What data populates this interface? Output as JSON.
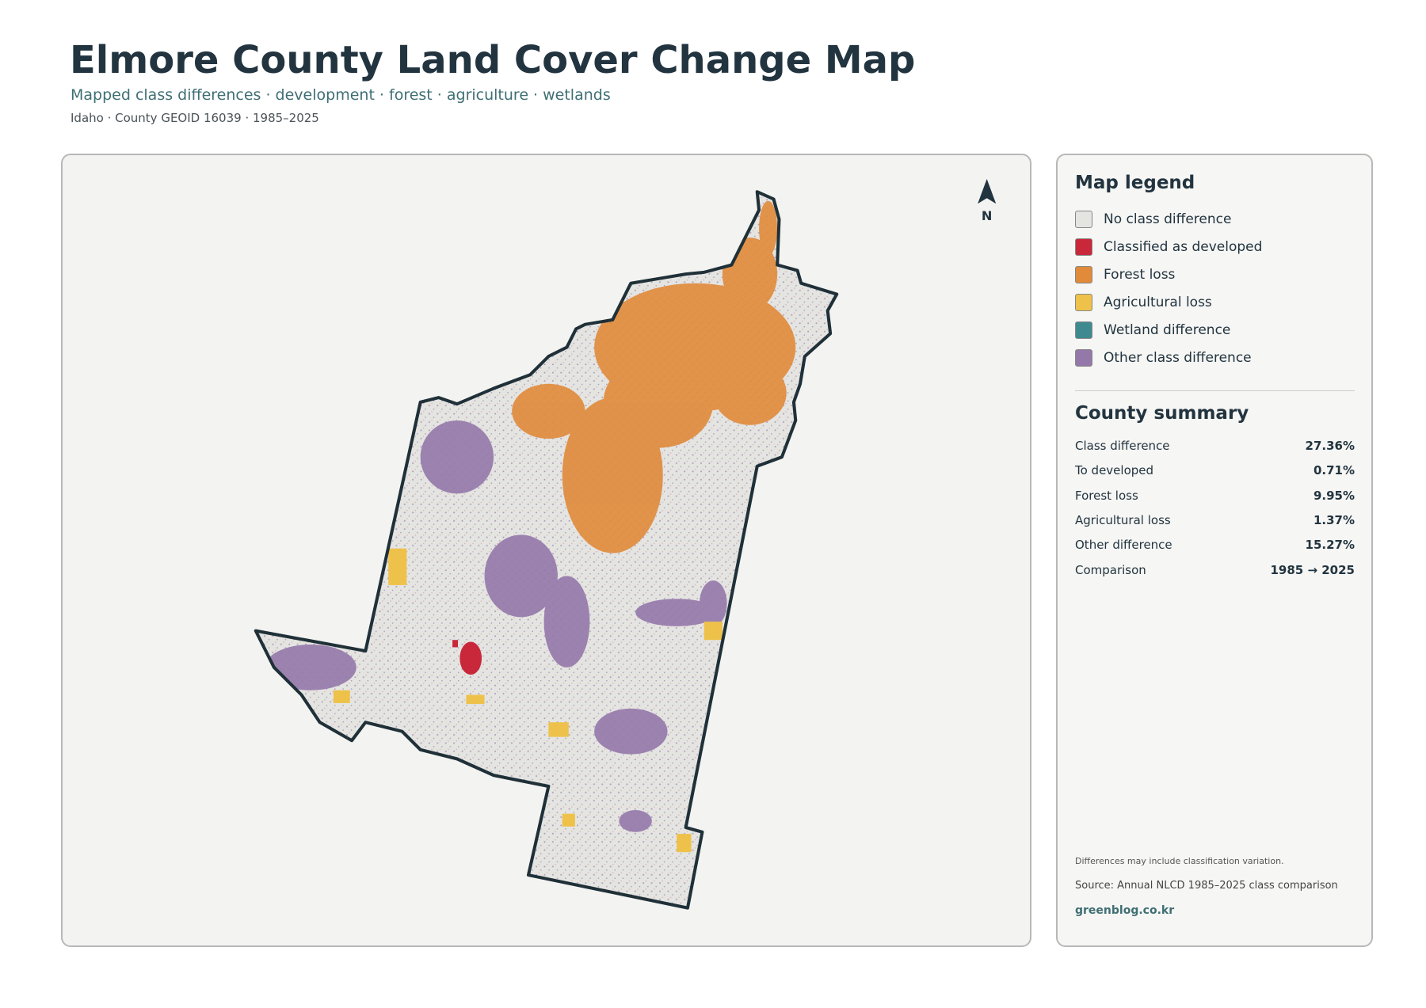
{
  "header": {
    "title": "Elmore County Land Cover Change Map",
    "subtitle": "Mapped class differences · development · forest · agriculture · wetlands",
    "meta": "Idaho · County GEOID 16039 · 1985–2025"
  },
  "map": {
    "north": "N"
  },
  "legend": {
    "title": "Map legend",
    "items": [
      {
        "label": "No class difference",
        "color": "#e4e4e1"
      },
      {
        "label": "Classified as developed",
        "color": "#c8283a"
      },
      {
        "label": "Forest loss",
        "color": "#e08a3a"
      },
      {
        "label": "Agricultural loss",
        "color": "#eec24a"
      },
      {
        "label": "Wetland difference",
        "color": "#3f8a90"
      },
      {
        "label": "Other class difference",
        "color": "#9478aa"
      }
    ]
  },
  "summary": {
    "title": "County summary",
    "rows": [
      [
        "Class difference",
        "27.36%"
      ],
      [
        "To developed",
        "0.71%"
      ],
      [
        "Forest loss",
        "9.95%"
      ],
      [
        "Agricultural loss",
        "1.37%"
      ],
      [
        "Other difference",
        "15.27%"
      ],
      [
        "Comparison",
        "1985 → 2025"
      ]
    ]
  },
  "footer": {
    "note": "Differences may include classification variation.",
    "source": "Source: Annual NLCD 1985–2025 class comparison",
    "site": "greenblog.co.kr"
  }
}
